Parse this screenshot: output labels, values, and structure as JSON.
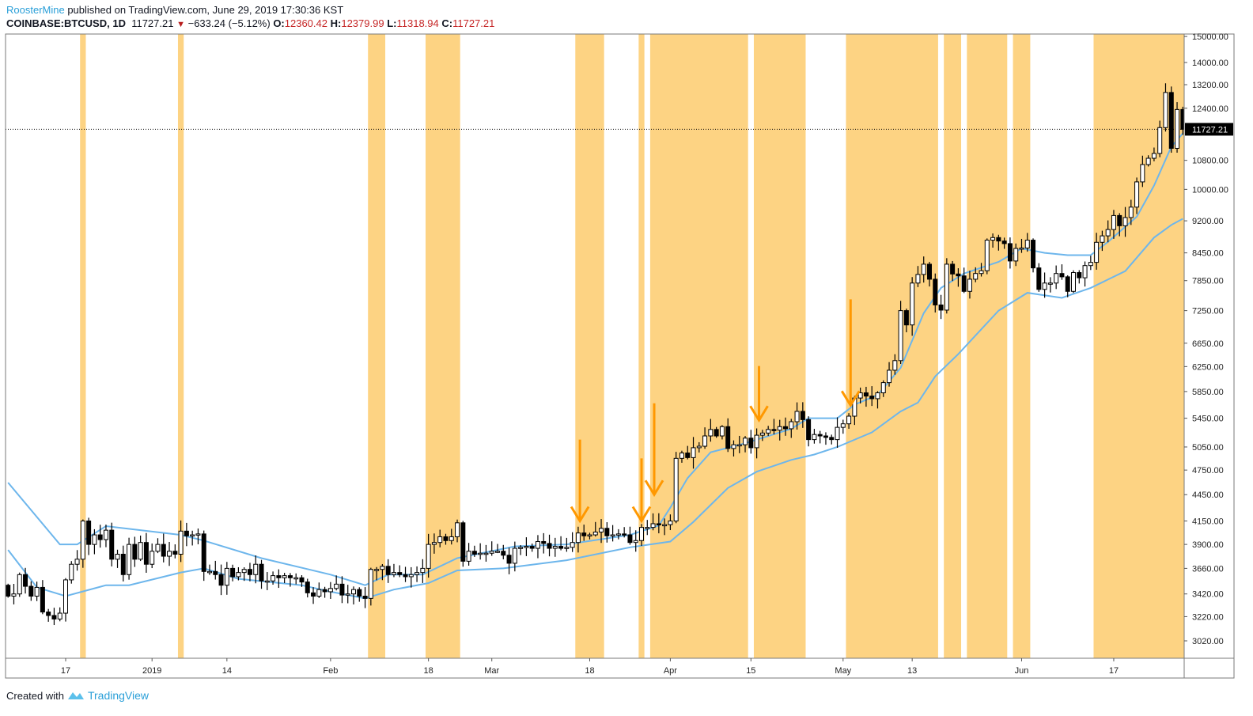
{
  "header": {
    "author": "RoosterMine",
    "published": "published on TradingView.com, June 29, 2019 17:30:36 KST",
    "symbol": "COINBASE:BTCUSD, 1D",
    "last": "11727.21",
    "change": "−633.24 (−5.12%)",
    "o_label": "O:",
    "o": "12360.42",
    "h_label": "H:",
    "h": "12379.99",
    "l_label": "L:",
    "l": "11318.94",
    "c_label": "C:",
    "c": "11727.21",
    "direction_icon": "down-triangle-icon"
  },
  "footer": {
    "created_with": "Created with",
    "brand": "TradingView",
    "logo_icon": "tradingview-logo-icon"
  },
  "colors": {
    "band": "#FDD383",
    "envelope": "#6DB6EC",
    "arrow": "#FF9800",
    "up_fill": "#FFFFFF",
    "down_fill": "#000000",
    "price_tag": "#000000"
  },
  "chart_data": {
    "type": "candlestick",
    "title": "COINBASE:BTCUSD, 1D",
    "y_scale": "log",
    "ylim": [
      2900,
      15200
    ],
    "x_start_date": "2018-12-07",
    "x_unit": "day index from x_start_date",
    "first_open": 3500,
    "closes": [
      3400,
      3420,
      3600,
      3490,
      3400,
      3480,
      3260,
      3230,
      3200,
      3250,
      3550,
      3700,
      3750,
      4150,
      3900,
      4000,
      3950,
      4050,
      3750,
      3800,
      3600,
      3900,
      3750,
      3920,
      3700,
      3830,
      3900,
      3780,
      3830,
      3800,
      4040,
      3990,
      4000,
      4010,
      3630,
      3630,
      3600,
      3500,
      3660,
      3580,
      3620,
      3650,
      3600,
      3700,
      3540,
      3540,
      3590,
      3570,
      3590,
      3570,
      3570,
      3530,
      3430,
      3400,
      3460,
      3440,
      3470,
      3510,
      3410,
      3420,
      3460,
      3400,
      3380,
      3650,
      3650,
      3680,
      3600,
      3620,
      3600,
      3580,
      3600,
      3620,
      3660,
      3900,
      3920,
      3980,
      3940,
      3980,
      4130,
      3730,
      3830,
      3800,
      3810,
      3810,
      3830,
      3830,
      3790,
      3710,
      3860,
      3870,
      3880,
      3860,
      3930,
      3910,
      3860,
      3880,
      3860,
      3870,
      3920,
      4020,
      3990,
      4000,
      4030,
      4070,
      3990,
      4000,
      4010,
      4000,
      3920,
      3940,
      4080,
      4080,
      4120,
      4110,
      4110,
      4150,
      4900,
      4970,
      4910,
      5040,
      5060,
      5200,
      5290,
      5200,
      5330,
      5030,
      5080,
      5080,
      5170,
      5040,
      5210,
      5240,
      5290,
      5280,
      5330,
      5300,
      5400,
      5550,
      5430,
      5150,
      5220,
      5200,
      5180,
      5150,
      5320,
      5370,
      5480,
      5750,
      5830,
      5780,
      5740,
      5830,
      5990,
      6190,
      6350,
      7250,
      6980,
      7800,
      7980,
      8200,
      7880,
      7360,
      7260,
      8200,
      7990,
      7950,
      7630,
      7880,
      8000,
      8060,
      8740,
      8800,
      8720,
      8660,
      8270,
      8550,
      8560,
      8740,
      8120,
      7670,
      7800,
      7800,
      8000,
      7930,
      7630,
      8020,
      7910,
      8170,
      8240,
      8690,
      8840,
      8990,
      9330,
      9080,
      9280,
      9540,
      10200,
      10680,
      10860,
      11000,
      11780,
      12930,
      11150,
      12360,
      11727.21
    ],
    "upper_band": [
      [
        0,
        4595
      ],
      [
        9,
        3900
      ],
      [
        12,
        3900
      ],
      [
        17,
        4094
      ],
      [
        30,
        4000
      ],
      [
        34,
        3940
      ],
      [
        44,
        3760
      ],
      [
        56,
        3600
      ],
      [
        62,
        3500
      ],
      [
        66,
        3600
      ],
      [
        72,
        3600
      ],
      [
        78,
        3760
      ],
      [
        88,
        3880
      ],
      [
        97,
        3900
      ],
      [
        108,
        4000
      ],
      [
        113,
        4100
      ],
      [
        115,
        4300
      ],
      [
        118,
        4650
      ],
      [
        122,
        4980
      ],
      [
        128,
        5100
      ],
      [
        136,
        5300
      ],
      [
        139,
        5450
      ],
      [
        144,
        5450
      ],
      [
        147,
        5650
      ],
      [
        151,
        5800
      ],
      [
        155,
        6230
      ],
      [
        159,
        7200
      ],
      [
        162,
        7700
      ],
      [
        166,
        8000
      ],
      [
        172,
        8250
      ],
      [
        176,
        8550
      ],
      [
        180,
        8450
      ],
      [
        184,
        8400
      ],
      [
        188,
        8400
      ],
      [
        191,
        8700
      ],
      [
        196,
        9300
      ],
      [
        199,
        10100
      ],
      [
        202,
        11200
      ],
      [
        204,
        11600
      ]
    ],
    "lower_band": [
      [
        0,
        3843
      ],
      [
        5,
        3480
      ],
      [
        10,
        3400
      ],
      [
        17,
        3500
      ],
      [
        21,
        3500
      ],
      [
        30,
        3620
      ],
      [
        34,
        3660
      ],
      [
        40,
        3560
      ],
      [
        51,
        3500
      ],
      [
        56,
        3440
      ],
      [
        62,
        3380
      ],
      [
        67,
        3460
      ],
      [
        73,
        3520
      ],
      [
        78,
        3640
      ],
      [
        86,
        3660
      ],
      [
        97,
        3740
      ],
      [
        108,
        3870
      ],
      [
        115,
        3930
      ],
      [
        119,
        4140
      ],
      [
        125,
        4530
      ],
      [
        130,
        4730
      ],
      [
        136,
        4880
      ],
      [
        140,
        4950
      ],
      [
        144,
        5050
      ],
      [
        150,
        5250
      ],
      [
        155,
        5550
      ],
      [
        158,
        5680
      ],
      [
        161,
        6090
      ],
      [
        165,
        6460
      ],
      [
        172,
        7250
      ],
      [
        177,
        7600
      ],
      [
        183,
        7500
      ],
      [
        188,
        7700
      ],
      [
        194,
        8050
      ],
      [
        199,
        8800
      ],
      [
        202,
        9100
      ],
      [
        204,
        9250
      ]
    ],
    "highlight_ranges": [
      [
        13,
        13
      ],
      [
        30,
        30
      ],
      [
        63,
        65
      ],
      [
        73,
        78
      ],
      [
        99,
        103
      ],
      [
        110,
        110
      ],
      [
        112,
        128
      ],
      [
        130,
        138
      ],
      [
        146,
        161
      ],
      [
        163,
        165
      ],
      [
        167,
        173
      ],
      [
        175,
        177
      ],
      [
        189,
        204
      ]
    ],
    "arrows": [
      {
        "day": 99.3,
        "from": 5150,
        "to": 4150
      },
      {
        "day": 110,
        "from": 4900,
        "to": 4150
      },
      {
        "day": 112.2,
        "from": 5670,
        "to": 4450
      },
      {
        "day": 130.4,
        "from": 6260,
        "to": 5420
      },
      {
        "day": 146.3,
        "from": 7470,
        "to": 5640
      }
    ],
    "y_ticks": [
      "15000.00",
      "14000.00",
      "13200.00",
      "12400.00",
      "10800.00",
      "10000.00",
      "9200.00",
      "8450.00",
      "7850.00",
      "7250.00",
      "6650.00",
      "6250.00",
      "5850.00",
      "5450.00",
      "5050.00",
      "4750.00",
      "4450.00",
      "4150.00",
      "3900.00",
      "3660.00",
      "3420.00",
      "3220.00",
      "3020.00"
    ],
    "x_ticks": [
      {
        "day": 10,
        "label": "17"
      },
      {
        "day": 25,
        "label": "2019"
      },
      {
        "day": 38,
        "label": "14"
      },
      {
        "day": 56,
        "label": "Feb"
      },
      {
        "day": 73,
        "label": "18"
      },
      {
        "day": 84,
        "label": "Mar"
      },
      {
        "day": 101,
        "label": "18"
      },
      {
        "day": 115,
        "label": "Apr"
      },
      {
        "day": 129,
        "label": "15"
      },
      {
        "day": 145,
        "label": "May"
      },
      {
        "day": 157,
        "label": "13"
      },
      {
        "day": 176,
        "label": "Jun"
      },
      {
        "day": 192,
        "label": "17"
      }
    ],
    "last_price": 11727.21,
    "last_price_label": "11727.21"
  }
}
